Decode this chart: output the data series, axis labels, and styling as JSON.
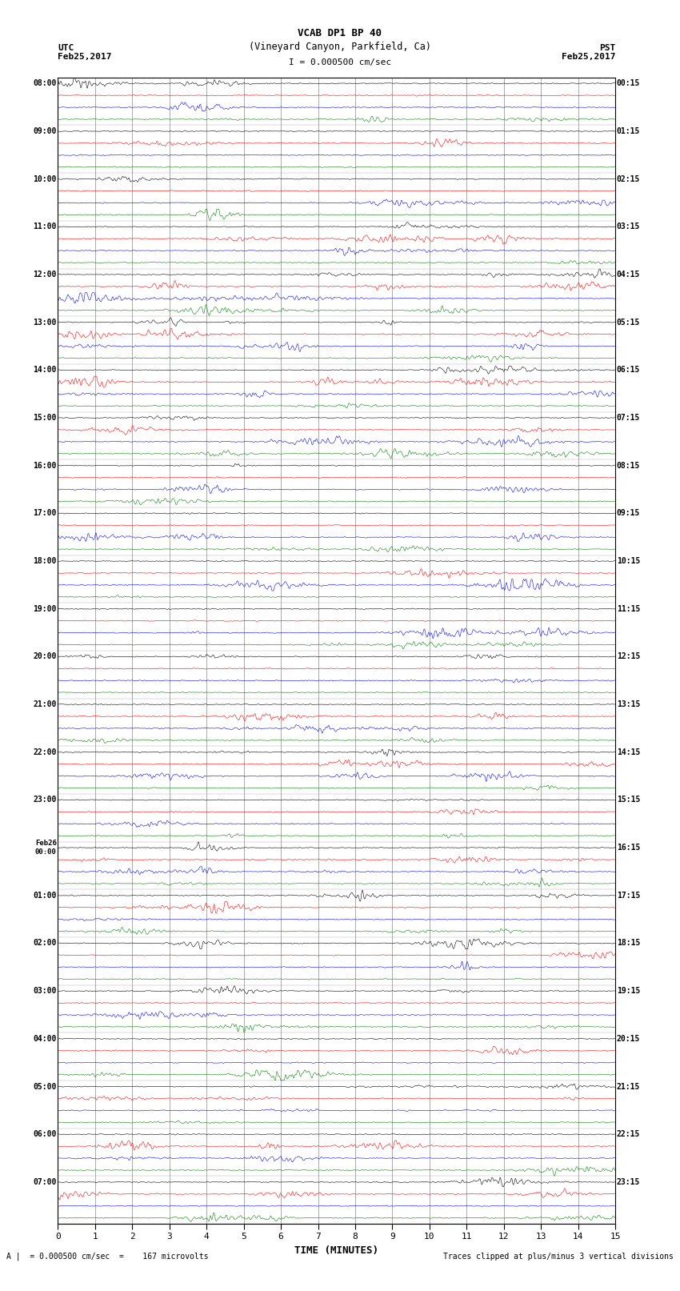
{
  "title_line1": "VCAB DP1 BP 40",
  "title_line2": "(Vineyard Canyon, Parkfield, Ca)",
  "scale_label": "I = 0.000500 cm/sec",
  "left_label_utc": "UTC",
  "left_date": "Feb25,2017",
  "right_label_pst": "PST",
  "right_date": "Feb25,2017",
  "xlabel": "TIME (MINUTES)",
  "bottom_left": "A |  = 0.000500 cm/sec  =    167 microvolts",
  "bottom_right": "Traces clipped at plus/minus 3 vertical divisions",
  "colors": [
    "black",
    "red",
    "blue",
    "green"
  ],
  "n_rows": 96,
  "minutes": 15,
  "utc_labels": [
    "08:00",
    "",
    "",
    "",
    "09:00",
    "",
    "",
    "",
    "10:00",
    "",
    "",
    "",
    "11:00",
    "",
    "",
    "",
    "12:00",
    "",
    "",
    "",
    "13:00",
    "",
    "",
    "",
    "14:00",
    "",
    "",
    "",
    "15:00",
    "",
    "",
    "",
    "16:00",
    "",
    "",
    "",
    "17:00",
    "",
    "",
    "",
    "18:00",
    "",
    "",
    "",
    "19:00",
    "",
    "",
    "",
    "20:00",
    "",
    "",
    "",
    "21:00",
    "",
    "",
    "",
    "22:00",
    "",
    "",
    "",
    "23:00",
    "",
    "",
    "",
    "Feb26\n00:00",
    "",
    "",
    "",
    "01:00",
    "",
    "",
    "",
    "02:00",
    "",
    "",
    "",
    "03:00",
    "",
    "",
    "",
    "04:00",
    "",
    "",
    "",
    "05:00",
    "",
    "",
    "",
    "06:00",
    "",
    "",
    "",
    "07:00",
    "",
    "",
    ""
  ],
  "pst_labels": [
    "00:15",
    "",
    "",
    "",
    "01:15",
    "",
    "",
    "",
    "02:15",
    "",
    "",
    "",
    "03:15",
    "",
    "",
    "",
    "04:15",
    "",
    "",
    "",
    "05:15",
    "",
    "",
    "",
    "06:15",
    "",
    "",
    "",
    "07:15",
    "",
    "",
    "",
    "08:15",
    "",
    "",
    "",
    "09:15",
    "",
    "",
    "",
    "10:15",
    "",
    "",
    "",
    "11:15",
    "",
    "",
    "",
    "12:15",
    "",
    "",
    "",
    "13:15",
    "",
    "",
    "",
    "14:15",
    "",
    "",
    "",
    "15:15",
    "",
    "",
    "",
    "16:15",
    "",
    "",
    "",
    "17:15",
    "",
    "",
    "",
    "18:15",
    "",
    "",
    "",
    "19:15",
    "",
    "",
    "",
    "20:15",
    "",
    "",
    "",
    "21:15",
    "",
    "",
    "",
    "22:15",
    "",
    "",
    "",
    "23:15",
    "",
    "",
    ""
  ],
  "background_color": "white",
  "noise_amplitude": 0.04,
  "seed": 42
}
